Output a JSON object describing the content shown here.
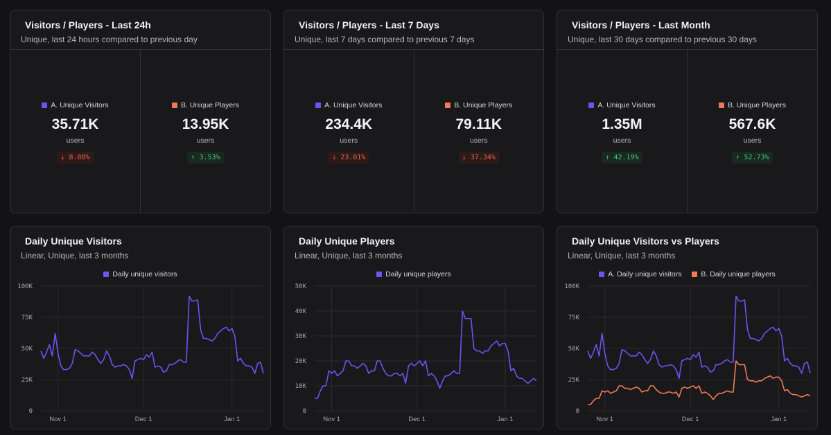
{
  "colors": {
    "visitors": "#7350f2",
    "players": "#f07b55",
    "grid": "#2c2c2f",
    "tick": "#a9a9ad"
  },
  "stat_panels": [
    {
      "title": "Visitors / Players - Last 24h",
      "subtitle": "Unique, last 24 hours compared to previous day",
      "stats": [
        {
          "name": "A. Unique Visitors",
          "value": "35.71K",
          "unit": "users",
          "delta": "↓ 8.88%",
          "trend": "down",
          "color": "visitors"
        },
        {
          "name": "B. Unique Players",
          "value": "13.95K",
          "unit": "users",
          "delta": "↑ 3.53%",
          "trend": "up",
          "color": "players"
        }
      ]
    },
    {
      "title": "Visitors / Players - Last 7 Days",
      "subtitle": "Unique, last 7 days compared to previous 7 days",
      "stats": [
        {
          "name": "A. Unique Visitors",
          "value": "234.4K",
          "unit": "users",
          "delta": "↓ 23.01%",
          "trend": "down",
          "color": "visitors"
        },
        {
          "name": "B. Unique Players",
          "value": "79.11K",
          "unit": "users",
          "delta": "↓ 37.34%",
          "trend": "down",
          "color": "players"
        }
      ]
    },
    {
      "title": "Visitors / Players - Last Month",
      "subtitle": "Unique, last 30 days compared to previous 30 days",
      "stats": [
        {
          "name": "A. Unique Visitors",
          "value": "1.35M",
          "unit": "users",
          "delta": "↑ 42.19%",
          "trend": "up",
          "color": "visitors"
        },
        {
          "name": "B. Unique Players",
          "value": "567.6K",
          "unit": "users",
          "delta": "↑ 52.73%",
          "trend": "up",
          "color": "players"
        }
      ]
    }
  ],
  "chart_panels": [
    {
      "title": "Daily Unique Visitors",
      "subtitle": "Linear, Unique, last 3 months"
    },
    {
      "title": "Daily Unique Players",
      "subtitle": "Linear, Unique, last 3 months"
    },
    {
      "title": "Daily Unique Visitors vs Players",
      "subtitle": "Linear, Unique, last 3 months"
    }
  ],
  "chart_data": [
    {
      "type": "line",
      "title": "Daily Unique Visitors",
      "ylim": [
        0,
        100000
      ],
      "yticks": [
        {
          "v": 0,
          "label": "0"
        },
        {
          "v": 25000,
          "label": "25K"
        },
        {
          "v": 50000,
          "label": "50K"
        },
        {
          "v": 75000,
          "label": "75K"
        },
        {
          "v": 100000,
          "label": "100K"
        }
      ],
      "xticks": [
        {
          "i": 6,
          "label": "Nov 1"
        },
        {
          "i": 36,
          "label": "Dec 1"
        },
        {
          "i": 67,
          "label": "Jan 1"
        }
      ],
      "legend": "top-center",
      "series": [
        {
          "name": "Daily unique visitors",
          "color": "visitors",
          "values": [
            48000,
            42000,
            47000,
            53000,
            44000,
            62000,
            46000,
            36000,
            33000,
            33000,
            34000,
            38000,
            49000,
            48000,
            46000,
            44000,
            44000,
            44000,
            47000,
            45000,
            41000,
            38000,
            41000,
            48000,
            44000,
            37000,
            35000,
            36000,
            36000,
            37000,
            36000,
            33000,
            26000,
            40000,
            41000,
            42000,
            41000,
            45000,
            43000,
            47000,
            35000,
            36000,
            35000,
            31000,
            32000,
            37000,
            37000,
            38000,
            40000,
            41000,
            39000,
            39000,
            92000,
            88000,
            88000,
            89000,
            65000,
            58000,
            58000,
            57000,
            56000,
            58000,
            62000,
            64000,
            66000,
            67000,
            64000,
            66000,
            60000,
            40000,
            42000,
            38000,
            36000,
            36000,
            35000,
            30000,
            38000,
            39000,
            30000
          ]
        }
      ]
    },
    {
      "type": "line",
      "title": "Daily Unique Players",
      "ylim": [
        0,
        50000
      ],
      "yticks": [
        {
          "v": 0,
          "label": "0"
        },
        {
          "v": 10000,
          "label": "10K"
        },
        {
          "v": 20000,
          "label": "20K"
        },
        {
          "v": 30000,
          "label": "30K"
        },
        {
          "v": 40000,
          "label": "40K"
        },
        {
          "v": 50000,
          "label": "50K"
        }
      ],
      "xticks": [
        {
          "i": 6,
          "label": "Nov 1"
        },
        {
          "i": 36,
          "label": "Dec 1"
        },
        {
          "i": 67,
          "label": "Jan 1"
        }
      ],
      "legend": "top-center",
      "series": [
        {
          "name": "Daily unique players",
          "color": "visitors",
          "values": [
            5000,
            5000,
            8000,
            10000,
            10000,
            16000,
            15000,
            16000,
            14000,
            15000,
            16000,
            20000,
            20000,
            18000,
            18000,
            17000,
            18000,
            19000,
            18000,
            15000,
            16000,
            16000,
            20000,
            20000,
            17000,
            15000,
            14000,
            14000,
            15000,
            15000,
            14000,
            15000,
            11000,
            18000,
            19000,
            18000,
            19000,
            20000,
            18000,
            20000,
            14000,
            15000,
            14000,
            12000,
            9000,
            12000,
            14000,
            14000,
            15000,
            16000,
            15000,
            15000,
            40000,
            37000,
            37000,
            37000,
            25000,
            24000,
            24000,
            23000,
            24000,
            24000,
            26000,
            27000,
            28000,
            26000,
            27000,
            27000,
            24000,
            16000,
            17000,
            14000,
            13000,
            13000,
            12000,
            11000,
            12000,
            13000,
            12000
          ]
        }
      ]
    },
    {
      "type": "line",
      "title": "Daily Unique Visitors vs Players",
      "ylim": [
        0,
        100000
      ],
      "yticks": [
        {
          "v": 0,
          "label": "0"
        },
        {
          "v": 25000,
          "label": "25K"
        },
        {
          "v": 50000,
          "label": "50K"
        },
        {
          "v": 75000,
          "label": "75K"
        },
        {
          "v": 100000,
          "label": "100K"
        }
      ],
      "xticks": [
        {
          "i": 6,
          "label": "Nov 1"
        },
        {
          "i": 36,
          "label": "Dec 1"
        },
        {
          "i": 67,
          "label": "Jan 1"
        }
      ],
      "legend": "top-center",
      "series": [
        {
          "name": "A. Daily unique visitors",
          "color": "visitors",
          "values": [
            48000,
            42000,
            47000,
            53000,
            44000,
            62000,
            46000,
            36000,
            33000,
            33000,
            34000,
            38000,
            49000,
            48000,
            46000,
            44000,
            44000,
            44000,
            47000,
            45000,
            41000,
            38000,
            41000,
            48000,
            44000,
            37000,
            35000,
            36000,
            36000,
            37000,
            36000,
            33000,
            26000,
            40000,
            41000,
            42000,
            41000,
            45000,
            43000,
            47000,
            35000,
            36000,
            35000,
            31000,
            32000,
            37000,
            37000,
            38000,
            40000,
            41000,
            39000,
            39000,
            92000,
            88000,
            88000,
            89000,
            65000,
            58000,
            58000,
            57000,
            56000,
            58000,
            62000,
            64000,
            66000,
            67000,
            64000,
            66000,
            60000,
            40000,
            42000,
            38000,
            36000,
            36000,
            35000,
            30000,
            38000,
            39000,
            30000
          ]
        },
        {
          "name": "B. Daily unique players",
          "color": "players",
          "values": [
            5000,
            5000,
            8000,
            10000,
            10000,
            16000,
            15000,
            16000,
            14000,
            15000,
            16000,
            20000,
            20000,
            18000,
            18000,
            17000,
            18000,
            19000,
            18000,
            15000,
            16000,
            16000,
            20000,
            20000,
            17000,
            15000,
            14000,
            14000,
            15000,
            15000,
            14000,
            15000,
            11000,
            18000,
            19000,
            18000,
            19000,
            20000,
            18000,
            20000,
            14000,
            15000,
            14000,
            12000,
            9000,
            12000,
            14000,
            14000,
            15000,
            16000,
            15000,
            15000,
            40000,
            37000,
            37000,
            37000,
            25000,
            24000,
            24000,
            23000,
            24000,
            24000,
            26000,
            27000,
            28000,
            26000,
            27000,
            27000,
            24000,
            16000,
            17000,
            14000,
            13000,
            13000,
            12000,
            11000,
            12000,
            13000,
            12000
          ]
        }
      ]
    }
  ]
}
